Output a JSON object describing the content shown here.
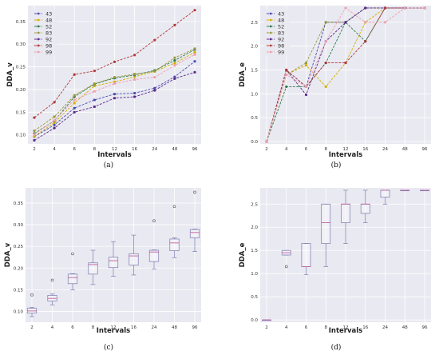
{
  "figure": {
    "panel_labels": [
      "(a)",
      "(b)",
      "(c)",
      "(d)"
    ]
  },
  "chart_data": [
    {
      "type": "line",
      "panel": "(a)",
      "xlabel": "Intervals",
      "ylabel": "DDA_v",
      "categories": [
        "2",
        "4",
        "6",
        "8",
        "12",
        "16",
        "24",
        "48",
        "96"
      ],
      "ylim": [
        0.08,
        0.385
      ],
      "yticks": [
        "0.10",
        "0.15",
        "0.20",
        "0.25",
        "0.30",
        "0.35"
      ],
      "grid": true,
      "legend_position": "top-left",
      "series": [
        {
          "name": "43",
          "color": "#4c4cb0",
          "values": [
            0.096,
            0.122,
            0.159,
            0.177,
            0.19,
            0.192,
            0.203,
            0.228,
            0.262
          ]
        },
        {
          "name": "48",
          "color": "#d4b000",
          "values": [
            0.097,
            0.127,
            0.17,
            0.208,
            0.217,
            0.228,
            0.24,
            0.258,
            0.282
          ]
        },
        {
          "name": "52",
          "color": "#2b7a4b",
          "values": [
            0.103,
            0.131,
            0.184,
            0.212,
            0.225,
            0.232,
            0.242,
            0.264,
            0.288
          ]
        },
        {
          "name": "83",
          "color": "#9a9a40",
          "values": [
            0.109,
            0.14,
            0.187,
            0.213,
            0.227,
            0.234,
            0.24,
            0.27,
            0.29
          ]
        },
        {
          "name": "92",
          "color": "#5a2a8a",
          "values": [
            0.088,
            0.115,
            0.15,
            0.162,
            0.181,
            0.184,
            0.198,
            0.224,
            0.238
          ]
        },
        {
          "name": "98",
          "color": "#b03a3a",
          "values": [
            0.138,
            0.172,
            0.233,
            0.241,
            0.261,
            0.276,
            0.309,
            0.342,
            0.375
          ]
        },
        {
          "name": "99",
          "color": "#f0a0b0",
          "values": [
            0.101,
            0.132,
            0.177,
            0.196,
            0.213,
            0.222,
            0.227,
            0.253,
            0.277
          ]
        }
      ]
    },
    {
      "type": "line",
      "panel": "(b)",
      "xlabel": "Intervals",
      "ylabel": "DDA_e",
      "categories": [
        "2",
        "4",
        "6",
        "8",
        "12",
        "16",
        "24",
        "48",
        "96"
      ],
      "ylim": [
        -0.05,
        2.85
      ],
      "yticks": [
        "0.0",
        "0.5",
        "1.0",
        "1.5",
        "2.0",
        "2.5"
      ],
      "grid": true,
      "legend_position": "top-left",
      "series": [
        {
          "name": "43",
          "color": "#4c4cb0",
          "values": [
            0.0,
            1.5,
            1.15,
            2.5,
            2.5,
            2.8,
            2.8,
            2.8,
            2.8
          ]
        },
        {
          "name": "48",
          "color": "#d4b000",
          "values": [
            0.0,
            1.4,
            1.6,
            1.15,
            1.65,
            2.5,
            2.8,
            2.8,
            2.8
          ]
        },
        {
          "name": "52",
          "color": "#2b7a4b",
          "values": [
            0.0,
            1.15,
            1.15,
            1.65,
            2.5,
            2.1,
            2.8,
            2.8,
            2.8
          ]
        },
        {
          "name": "83",
          "color": "#9a9a40",
          "values": [
            0.0,
            1.4,
            1.65,
            2.5,
            2.5,
            2.8,
            2.8,
            2.8,
            2.8
          ]
        },
        {
          "name": "92",
          "color": "#5a2a8a",
          "values": [
            0.0,
            1.5,
            0.98,
            2.1,
            2.5,
            2.8,
            2.8,
            2.8,
            2.8
          ]
        },
        {
          "name": "98",
          "color": "#b03a3a",
          "values": [
            0.0,
            1.5,
            1.15,
            1.65,
            1.65,
            2.1,
            2.8,
            2.8,
            2.8
          ]
        },
        {
          "name": "99",
          "color": "#f0a0b0",
          "values": [
            0.0,
            1.4,
            1.15,
            2.1,
            2.8,
            2.5,
            2.5,
            2.8,
            2.8
          ]
        }
      ]
    },
    {
      "type": "box",
      "panel": "(c)",
      "xlabel": "Intervals",
      "ylabel": "DDA_v",
      "categories": [
        "2",
        "4",
        "6",
        "8",
        "12",
        "16",
        "24",
        "48",
        "96"
      ],
      "ylim": [
        0.075,
        0.385
      ],
      "yticks": [
        "0.10",
        "0.15",
        "0.20",
        "0.25",
        "0.30",
        "0.35"
      ],
      "grid": true,
      "boxes": [
        {
          "min": 0.088,
          "q1": 0.096,
          "median": 0.101,
          "q3": 0.107,
          "max": 0.109,
          "outliers": [
            0.138
          ]
        },
        {
          "min": 0.115,
          "q1": 0.124,
          "median": 0.13,
          "q3": 0.137,
          "max": 0.14,
          "outliers": [
            0.172
          ]
        },
        {
          "min": 0.15,
          "q1": 0.164,
          "median": 0.178,
          "q3": 0.186,
          "max": 0.187,
          "outliers": [
            0.233
          ]
        },
        {
          "min": 0.162,
          "q1": 0.186,
          "median": 0.208,
          "q3": 0.212,
          "max": 0.241,
          "outliers": []
        },
        {
          "min": 0.181,
          "q1": 0.201,
          "median": 0.217,
          "q3": 0.225,
          "max": 0.261,
          "outliers": []
        },
        {
          "min": 0.184,
          "q1": 0.207,
          "median": 0.228,
          "q3": 0.233,
          "max": 0.276,
          "outliers": []
        },
        {
          "min": 0.198,
          "q1": 0.215,
          "median": 0.237,
          "q3": 0.241,
          "max": 0.242,
          "outliers": [
            0.309
          ]
        },
        {
          "min": 0.224,
          "q1": 0.24,
          "median": 0.258,
          "q3": 0.267,
          "max": 0.27,
          "outliers": [
            0.342
          ]
        },
        {
          "min": 0.238,
          "q1": 0.27,
          "median": 0.282,
          "q3": 0.289,
          "max": 0.29,
          "outliers": [
            0.375
          ]
        }
      ]
    },
    {
      "type": "box",
      "panel": "(d)",
      "xlabel": "Intervals",
      "ylabel": "DDA_e",
      "categories": [
        "2",
        "4",
        "6",
        "8",
        "12",
        "16",
        "24",
        "48",
        "96"
      ],
      "ylim": [
        -0.05,
        2.85
      ],
      "yticks": [
        "0.0",
        "0.5",
        "1.0",
        "1.5",
        "2.0",
        "2.5"
      ],
      "grid": true,
      "boxes": [
        {
          "min": 0.0,
          "q1": 0.0,
          "median": 0.0,
          "q3": 0.0,
          "max": 0.0,
          "outliers": []
        },
        {
          "min": 1.4,
          "q1": 1.4,
          "median": 1.45,
          "q3": 1.5,
          "max": 1.5,
          "outliers": [
            1.15
          ]
        },
        {
          "min": 0.98,
          "q1": 1.15,
          "median": 1.15,
          "q3": 1.65,
          "max": 1.65,
          "outliers": []
        },
        {
          "min": 1.15,
          "q1": 1.65,
          "median": 2.1,
          "q3": 2.5,
          "max": 2.5,
          "outliers": []
        },
        {
          "min": 1.65,
          "q1": 2.1,
          "median": 2.5,
          "q3": 2.5,
          "max": 2.8,
          "outliers": []
        },
        {
          "min": 2.1,
          "q1": 2.3,
          "median": 2.5,
          "q3": 2.5,
          "max": 2.8,
          "outliers": []
        },
        {
          "min": 2.5,
          "q1": 2.65,
          "median": 2.8,
          "q3": 2.8,
          "max": 2.8,
          "outliers": []
        },
        {
          "min": 2.8,
          "q1": 2.8,
          "median": 2.8,
          "q3": 2.8,
          "max": 2.8,
          "outliers": []
        },
        {
          "min": 2.8,
          "q1": 2.8,
          "median": 2.8,
          "q3": 2.8,
          "max": 2.8,
          "outliers": []
        }
      ]
    }
  ]
}
